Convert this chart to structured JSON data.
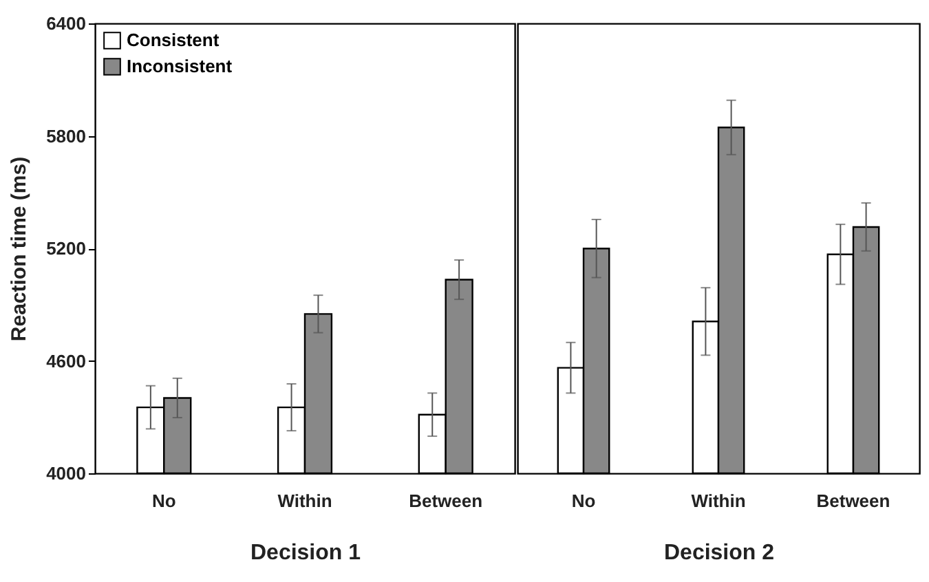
{
  "chart_data": [
    {
      "type": "bar",
      "categories": [
        "No",
        "Within",
        "Between"
      ],
      "xlabel": "Decision 1",
      "ylabel": "Reaction  time  (ms)",
      "ylim": [
        4000,
        6400
      ],
      "yticks": [
        4000,
        4600,
        5200,
        5800,
        6400
      ],
      "legend": "top left",
      "series": [
        {
          "name": "Consistent",
          "color": "#ffffff",
          "values": [
            4352,
            4352,
            4313
          ],
          "errors": [
            115,
            125,
            115
          ]
        },
        {
          "name": "Inconsistent",
          "color": "#888888",
          "values": [
            4402,
            4850,
            5033
          ],
          "errors": [
            105,
            100,
            105
          ]
        }
      ]
    },
    {
      "type": "bar",
      "categories": [
        "No",
        "Within",
        "Between"
      ],
      "xlabel": "Decision 2",
      "ylim": [
        4000,
        6400
      ],
      "tick_labels": "x",
      "series": [
        {
          "color": "#ffffff",
          "values": [
            4563,
            4810,
            5168
          ],
          "errors": [
            135,
            180,
            160
          ]
        },
        {
          "color": "#888888",
          "values": [
            5199,
            5845,
            5314
          ],
          "errors": [
            155,
            145,
            128
          ]
        }
      ]
    }
  ]
}
